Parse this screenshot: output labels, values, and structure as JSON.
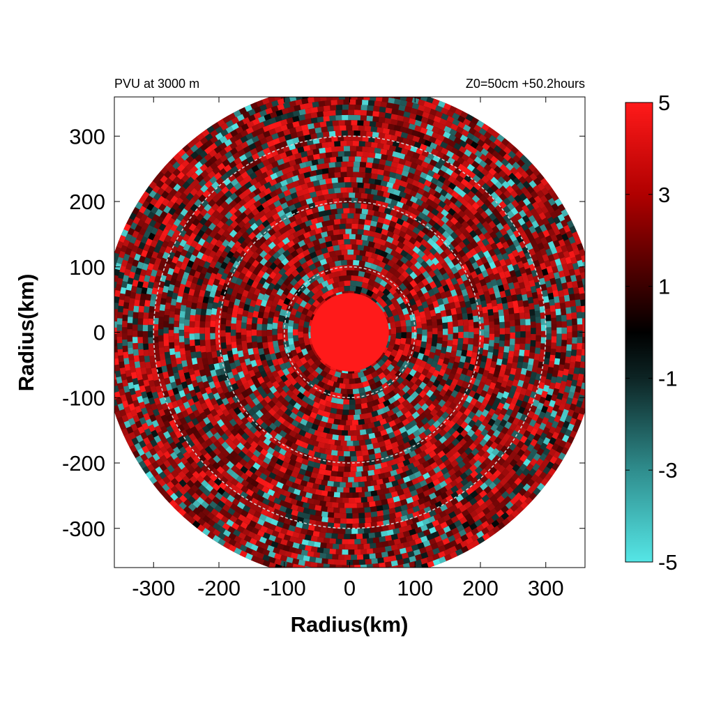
{
  "chart_data": {
    "type": "heatmap",
    "title_left": "PVU at  3000 m",
    "title_right": "Z0=50cm  +50.2hours",
    "xlabel": "Radius(km)",
    "ylabel": "Radius(km)",
    "xlim": [
      -360,
      360
    ],
    "ylim": [
      -360,
      360
    ],
    "x_ticks": [
      "-300",
      "-200",
      "-100",
      "0",
      "100",
      "200",
      "300"
    ],
    "x_tick_values": [
      -300,
      -200,
      -100,
      0,
      100,
      200,
      300
    ],
    "y_ticks": [
      "300",
      "200",
      "100",
      "0",
      "-100",
      "-200",
      "-300"
    ],
    "y_tick_values": [
      300,
      200,
      100,
      0,
      -100,
      -200,
      -300
    ],
    "data_radius_km": 380,
    "core": {
      "radius_km": 60,
      "value": 5
    },
    "reference_circles_km": [
      100,
      200,
      300
    ],
    "colorbar": {
      "min": -5,
      "max": 5,
      "ticks": [
        "5",
        "3",
        "1",
        "-1",
        "-3",
        "-5"
      ],
      "tick_values": [
        5,
        3,
        1,
        -1,
        -3,
        -5
      ],
      "colors": {
        "high": "#ff1a1a",
        "mid": "#000000",
        "low": "#55e6e6"
      }
    },
    "grid": false
  }
}
